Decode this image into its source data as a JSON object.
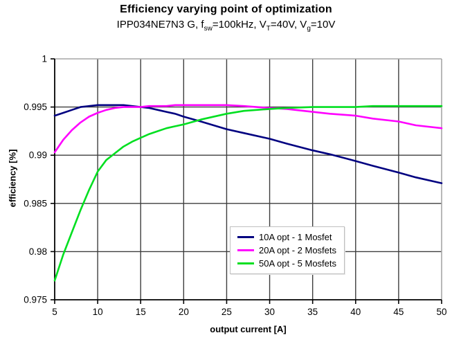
{
  "header": {
    "title": "Efficiency varying point of optimization",
    "subtitle": {
      "part1": "IPP034NE7N3 G, f",
      "sub1": "sw",
      "part2": "=100kHz, V",
      "sub2": "T",
      "part3": "=40V, V",
      "sub3": "g",
      "part4": "=10V"
    }
  },
  "chart_data": {
    "type": "line",
    "title": "Efficiency varying point of optimization",
    "subtitle_plain": "IPP034NE7N3 G, fsw=100kHz, VT=40V, Vg=10V",
    "xlabel": "output current [A]",
    "ylabel": "efficiency [%]",
    "xlim": [
      5,
      50
    ],
    "ylim": [
      0.975,
      1
    ],
    "grid": true,
    "legend_position": "inside-bottom-center",
    "x_ticks": [
      5,
      10,
      15,
      20,
      25,
      30,
      35,
      40,
      45,
      50
    ],
    "y_ticks": [
      {
        "value": 1,
        "label": "1"
      },
      {
        "value": 0.995,
        "label": "0.995"
      },
      {
        "value": 0.99,
        "label": "0.99"
      },
      {
        "value": 0.985,
        "label": "0.985"
      },
      {
        "value": 0.98,
        "label": "0.98"
      },
      {
        "value": 0.975,
        "label": "0.975"
      }
    ],
    "x": [
      5,
      6,
      7,
      8,
      9,
      10,
      11,
      12,
      13,
      14,
      15,
      16,
      17,
      18,
      19,
      20,
      22,
      25,
      27,
      30,
      32,
      35,
      37,
      40,
      42,
      45,
      47,
      50
    ],
    "series": [
      {
        "name": "10A opt - 1 Mosfet",
        "color": "#000080",
        "values": [
          0.9941,
          0.9944,
          0.9947,
          0.995,
          0.9951,
          0.9952,
          0.9952,
          0.9952,
          0.9952,
          0.9951,
          0.995,
          0.9949,
          0.9947,
          0.9945,
          0.9943,
          0.994,
          0.9935,
          0.9927,
          0.9923,
          0.9917,
          0.9912,
          0.9905,
          0.9901,
          0.9894,
          0.9889,
          0.9882,
          0.9877,
          0.9871
        ]
      },
      {
        "name": "20A opt - 2 Mosfets",
        "color": "#FF00FF",
        "values": [
          0.9903,
          0.9916,
          0.9926,
          0.9934,
          0.994,
          0.9944,
          0.9947,
          0.9949,
          0.995,
          0.995,
          0.995,
          0.9951,
          0.9951,
          0.9951,
          0.9952,
          0.9952,
          0.9952,
          0.9952,
          0.9951,
          0.9949,
          0.9948,
          0.9945,
          0.9943,
          0.9941,
          0.9938,
          0.9935,
          0.9931,
          0.9928
        ]
      },
      {
        "name": "50A opt - 5 Mosfets",
        "color": "#00DF20",
        "values": [
          0.977,
          0.9797,
          0.982,
          0.9843,
          0.9864,
          0.9883,
          0.9895,
          0.9902,
          0.9909,
          0.9914,
          0.9918,
          0.9922,
          0.9925,
          0.9928,
          0.993,
          0.9932,
          0.9937,
          0.9943,
          0.9946,
          0.9948,
          0.9949,
          0.995,
          0.995,
          0.995,
          0.9951,
          0.9951,
          0.9951,
          0.9951
        ]
      }
    ],
    "colors": {
      "gridline": "#3d3d3d",
      "axis": "#000000",
      "plot_border": "#a6a6a6",
      "background": "#ffffff"
    }
  }
}
